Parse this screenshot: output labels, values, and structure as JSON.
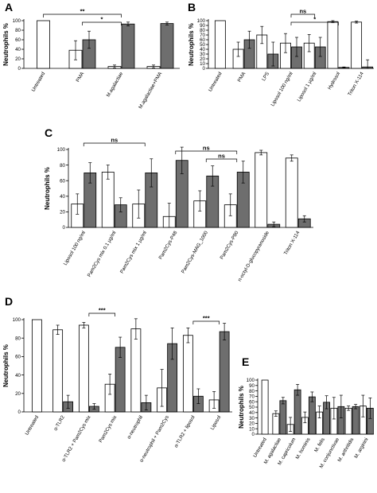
{
  "chart_data": [
    {
      "panel": "A",
      "type": "bar",
      "ylabel": "Neutrophils %",
      "ylim": [
        0,
        100
      ],
      "yticks": [
        0,
        20,
        40,
        60,
        80,
        100
      ],
      "categories": [
        "Untreated",
        "PMA",
        "M.agalactiae",
        "M.agalactiae+PMA"
      ],
      "series": [
        {
          "color": "#ffffff",
          "values": [
            100,
            38,
            4,
            4
          ],
          "errors": [
            0,
            20,
            3,
            3
          ]
        },
        {
          "color": "#6e6e6e",
          "values": [
            null,
            60,
            93,
            94
          ],
          "errors": [
            null,
            18,
            4,
            3
          ]
        }
      ],
      "annotations": [
        {
          "text": "**",
          "from": 0,
          "to": 2
        },
        {
          "text": "*",
          "from": 1,
          "to": 2
        }
      ]
    },
    {
      "panel": "B",
      "type": "bar",
      "ylabel": "Neutrophils %",
      "ylim": [
        0,
        100
      ],
      "yticks": [
        0,
        10,
        20,
        30,
        40,
        50,
        60,
        70,
        80,
        90,
        100
      ],
      "categories": [
        "Untreated",
        "PMA",
        "LPS",
        "Liposol 100 ng/ml",
        "Liposol 1 µg/ml",
        "Hydrosol",
        "Triton X-114"
      ],
      "series": [
        {
          "color": "#ffffff",
          "values": [
            100,
            40,
            70,
            53,
            53,
            98,
            97
          ],
          "errors": [
            0,
            15,
            18,
            20,
            18,
            2,
            2
          ]
        },
        {
          "color": "#6e6e6e",
          "values": [
            null,
            60,
            30,
            45,
            45,
            2,
            3
          ],
          "errors": [
            null,
            18,
            25,
            20,
            20,
            1,
            15
          ]
        }
      ],
      "annotations": [
        {
          "text": "ns",
          "from": 3,
          "to": 4
        },
        {
          "text": "*",
          "from": 3,
          "to": 5
        }
      ]
    },
    {
      "panel": "C",
      "type": "bar",
      "ylabel": "Neutrophils %",
      "ylim": [
        0,
        100
      ],
      "yticks": [
        0,
        20,
        40,
        60,
        80,
        100
      ],
      "categories": [
        "Liposol 100 ng/ml",
        "Pam2Cys mix 0.1 µg/ml",
        "Pam2Cys mix 1 µg/ml",
        "Pam2Cys-P48",
        "Pam2Cys-MAG_1000",
        "Pam2Cys-P80",
        "n-octyl-D-glucopyranoside",
        "Triton X-114"
      ],
      "series": [
        {
          "color": "#ffffff",
          "values": [
            30,
            71,
            30,
            14,
            34,
            29,
            96,
            89
          ],
          "errors": [
            13,
            9,
            18,
            17,
            13,
            14,
            3,
            4
          ]
        },
        {
          "color": "#6e6e6e",
          "values": [
            70,
            29,
            70,
            86,
            66,
            71,
            4,
            11
          ],
          "errors": [
            13,
            9,
            18,
            17,
            13,
            14,
            3,
            4
          ]
        }
      ],
      "annotations": [
        {
          "text": "ns",
          "from": 0,
          "to": 2
        },
        {
          "text": "ns",
          "from": 3,
          "to": 5
        },
        {
          "text": "ns",
          "from": 4,
          "to": 5
        }
      ]
    },
    {
      "panel": "D",
      "type": "bar",
      "ylabel": "Neutrophils %",
      "ylim": [
        0,
        100
      ],
      "yticks": [
        0,
        20,
        40,
        60,
        80,
        100
      ],
      "categories": [
        "Untreated",
        "α-TLR2",
        "α-TLR2 + Pam2Cys mix",
        "Pam2Cys mix",
        "α-neutrophil",
        "α-neutrophil + Pam2Cys",
        "α-TLR2 + liposol",
        "Liposol"
      ],
      "series": [
        {
          "color": "#ffffff",
          "values": [
            100,
            89,
            94,
            30,
            90,
            26,
            83,
            13
          ],
          "errors": [
            0,
            5,
            3,
            11,
            11,
            20,
            8,
            9
          ]
        },
        {
          "color": "#6e6e6e",
          "values": [
            null,
            11,
            6,
            70,
            10,
            74,
            17,
            87
          ],
          "errors": [
            null,
            7,
            3,
            11,
            8,
            17,
            8,
            9
          ]
        }
      ],
      "annotations": [
        {
          "text": "***",
          "from": 2,
          "to": 3
        },
        {
          "text": "***",
          "from": 6,
          "to": 7
        }
      ]
    },
    {
      "panel": "E",
      "type": "bar",
      "ylabel": "Neutrophils %",
      "ylim": [
        0,
        100
      ],
      "yticks": [
        0,
        10,
        20,
        30,
        40,
        50,
        60,
        70,
        80,
        90,
        100
      ],
      "categories": [
        "Untreated",
        "M. agalactiae",
        "M. capricolum",
        "M. hominis",
        "M. felis",
        "M. conjunctivae",
        "M. arthritidis",
        "M. arginini"
      ],
      "series": [
        {
          "color": "#ffffff",
          "values": [
            100,
            38,
            18,
            31,
            41,
            48,
            48,
            52
          ],
          "errors": [
            0,
            5,
            13,
            10,
            11,
            20,
            4,
            20
          ]
        },
        {
          "color": "#6e6e6e",
          "values": [
            null,
            62,
            82,
            69,
            59,
            51,
            51,
            48
          ],
          "errors": [
            null,
            6,
            10,
            9,
            12,
            21,
            4,
            19
          ]
        }
      ],
      "annotations": []
    }
  ]
}
